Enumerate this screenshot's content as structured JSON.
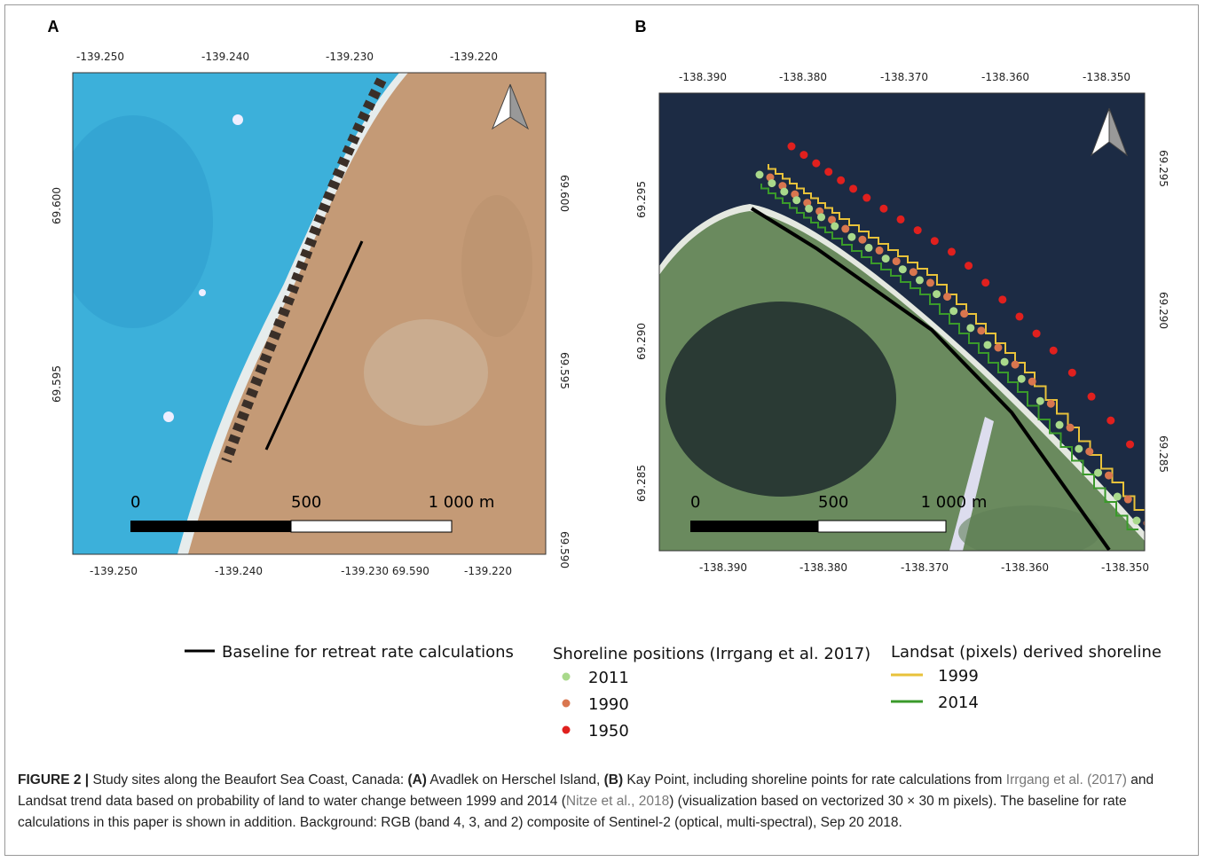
{
  "panels": [
    {
      "label": "A",
      "top_ticks": [
        "-139.250",
        "-139.240",
        "-139.230",
        "-139.220"
      ],
      "bottom_ticks": [
        "-139.250",
        "-139.240",
        "-139.230 69.590",
        "-139.220"
      ],
      "left_ticks": [
        "69.600",
        "69.595"
      ],
      "right_ticks": [
        "69.600",
        "69.595",
        "69.590"
      ],
      "scale_labels": [
        "0",
        "500",
        "1 000 m"
      ]
    },
    {
      "label": "B",
      "top_ticks": [
        "-138.390",
        "-138.380",
        "-138.370",
        "-138.360",
        "-138.350"
      ],
      "bottom_ticks": [
        "-138.390",
        "-138.380",
        "-138.370",
        "-138.360",
        "-138.350"
      ],
      "left_ticks": [
        "69.295",
        "69.290",
        "69.285"
      ],
      "right_ticks": [
        "69.295",
        "69.290",
        "69.285"
      ],
      "scale_labels": [
        "0",
        "500",
        "1 000 m"
      ]
    }
  ],
  "legend": {
    "baseline": "Baseline for retreat rate calculations",
    "shoreline_title": "Shoreline positions (Irrgang et al. 2017)",
    "shoreline_items": [
      "2011",
      "1990",
      "1950"
    ],
    "landsat_title": "Landsat (pixels) derived shoreline",
    "landsat_items": [
      "1999",
      "2014"
    ]
  },
  "caption": {
    "figure_label": "FIGURE 2 |",
    "part1": " Study sites along the Beaufort Sea Coast, Canada: ",
    "a_label": "(A)",
    "part2": " Avadlek on Herschel Island, ",
    "b_label": "(B)",
    "part3": " Kay Point, including shoreline points for rate calculations from ",
    "ref1": "Irrgang et al. (2017)",
    "part4": " and Landsat trend data based on probability of land to water change between 1999 and 2014 (",
    "ref2": "Nitze et al., 2018",
    "part5": ") (visualization based on vectorized 30 × 30 m pixels). The baseline for rate calculations in this paper is shown in addition. Background: RGB (band 4, 3, and 2) composite of Sentinel-2 (optical, multi-spectral), Sep 20 2018."
  }
}
